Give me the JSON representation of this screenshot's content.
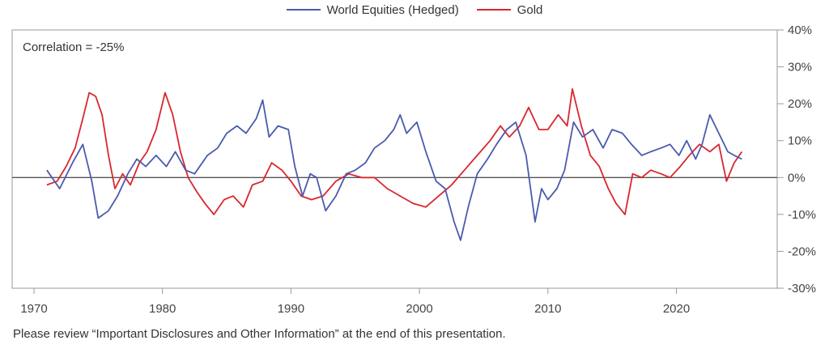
{
  "chart_data": {
    "type": "line",
    "title": "",
    "xlabel": "",
    "ylabel": "",
    "xlim": [
      1968.3,
      1936.0
    ],
    "ylim": [
      -0.3,
      0.4
    ],
    "x_ticks": [
      1970,
      1980,
      1990,
      2000,
      2010,
      2020
    ],
    "x_tick_labels": [
      "1970",
      "1980",
      "1990",
      "2000",
      "2010",
      "2020"
    ],
    "y_ticks": [
      -0.3,
      -0.2,
      -0.1,
      0.0,
      0.1,
      0.2,
      0.3,
      0.4
    ],
    "y_tick_labels": [
      "-30%",
      "-20%",
      "-10%",
      "0%",
      "10%",
      "20%",
      "30%",
      "40%"
    ],
    "grid": false,
    "legend": "top-center",
    "annotation": "Correlation = -25%",
    "series": [
      {
        "name": "World Equities (Hedged)",
        "color": "#4a5bad",
        "x": [
          1971.0,
          1972.0,
          1973.0,
          1973.8,
          1974.5,
          1975.0,
          1975.8,
          1976.5,
          1977.3,
          1978.0,
          1978.7,
          1979.5,
          1980.3,
          1981.0,
          1981.8,
          1982.5,
          1983.5,
          1984.3,
          1985.0,
          1985.8,
          1986.5,
          1987.3,
          1987.8,
          1988.3,
          1989.0,
          1989.8,
          1990.3,
          1990.9,
          1991.5,
          1992.0,
          1992.7,
          1993.5,
          1994.3,
          1995.0,
          1995.8,
          1996.5,
          1997.3,
          1998.0,
          1998.5,
          1999.0,
          1999.8,
          2000.5,
          2001.3,
          2002.0,
          2002.7,
          2003.2,
          2003.8,
          2004.5,
          2005.3,
          2006.0,
          2006.8,
          2007.5,
          2008.3,
          2009.0,
          2009.5,
          2010.0,
          2010.7,
          2011.3,
          2012.0,
          2012.7,
          2013.5,
          2014.3,
          2015.0,
          2015.8,
          2016.5,
          2017.3,
          2018.0,
          2018.8,
          2019.5,
          2020.2,
          2020.8,
          2021.5,
          2022.0,
          2022.6,
          2023.3,
          2024.0,
          2024.5,
          2025.1
        ],
        "y": [
          0.02,
          -0.03,
          0.04,
          0.09,
          -0.01,
          -0.11,
          -0.09,
          -0.05,
          0.01,
          0.05,
          0.03,
          0.06,
          0.03,
          0.07,
          0.02,
          0.01,
          0.06,
          0.08,
          0.12,
          0.14,
          0.12,
          0.16,
          0.21,
          0.11,
          0.14,
          0.13,
          0.03,
          -0.05,
          0.01,
          0.0,
          -0.09,
          -0.05,
          0.01,
          0.02,
          0.04,
          0.08,
          0.1,
          0.13,
          0.17,
          0.12,
          0.15,
          0.07,
          -0.01,
          -0.03,
          -0.12,
          -0.17,
          -0.08,
          0.01,
          0.05,
          0.09,
          0.13,
          0.15,
          0.06,
          -0.12,
          -0.03,
          -0.06,
          -0.03,
          0.02,
          0.15,
          0.11,
          0.13,
          0.08,
          0.13,
          0.12,
          0.09,
          0.06,
          0.07,
          0.08,
          0.09,
          0.06,
          0.1,
          0.05,
          0.09,
          0.17,
          0.12,
          0.07,
          0.06,
          0.05
        ]
      },
      {
        "name": "Gold",
        "color": "#d9272e",
        "x": [
          1971.0,
          1971.8,
          1972.5,
          1973.2,
          1973.8,
          1974.3,
          1974.8,
          1975.3,
          1975.8,
          1976.3,
          1976.9,
          1977.5,
          1978.2,
          1978.8,
          1979.5,
          1980.2,
          1980.8,
          1981.4,
          1982.0,
          1982.7,
          1983.3,
          1984.0,
          1984.8,
          1985.5,
          1986.3,
          1987.0,
          1987.8,
          1988.5,
          1989.3,
          1990.0,
          1990.8,
          1991.6,
          1992.5,
          1993.5,
          1994.5,
          1995.5,
          1996.5,
          1997.5,
          1998.5,
          1999.5,
          2000.5,
          2001.5,
          2002.5,
          2003.5,
          2004.5,
          2005.5,
          2006.3,
          2007.0,
          2007.8,
          2008.5,
          2009.3,
          2010.0,
          2010.8,
          2011.5,
          2011.9,
          2012.6,
          2013.3,
          2014.0,
          2014.7,
          2015.3,
          2016.0,
          2016.6,
          2017.3,
          2018.0,
          2018.8,
          2019.5,
          2020.3,
          2021.0,
          2021.8,
          2022.6,
          2023.3,
          2023.9,
          2024.5,
          2025.1
        ],
        "y": [
          -0.02,
          -0.01,
          0.03,
          0.08,
          0.16,
          0.23,
          0.22,
          0.17,
          0.06,
          -0.03,
          0.01,
          -0.02,
          0.04,
          0.07,
          0.13,
          0.23,
          0.17,
          0.07,
          0.0,
          -0.04,
          -0.07,
          -0.1,
          -0.06,
          -0.05,
          -0.08,
          -0.02,
          -0.01,
          0.04,
          0.02,
          -0.01,
          -0.05,
          -0.06,
          -0.05,
          -0.01,
          0.01,
          0.0,
          0.0,
          -0.03,
          -0.05,
          -0.07,
          -0.08,
          -0.05,
          -0.02,
          0.02,
          0.06,
          0.1,
          0.14,
          0.11,
          0.14,
          0.19,
          0.13,
          0.13,
          0.17,
          0.14,
          0.24,
          0.14,
          0.06,
          0.03,
          -0.03,
          -0.07,
          -0.1,
          0.01,
          0.0,
          0.02,
          0.01,
          0.0,
          0.03,
          0.06,
          0.09,
          0.07,
          0.09,
          -0.01,
          0.04,
          0.07
        ]
      }
    ]
  },
  "footnote": "Please review “Important Disclosures and Other Information” at the end of this presentation."
}
